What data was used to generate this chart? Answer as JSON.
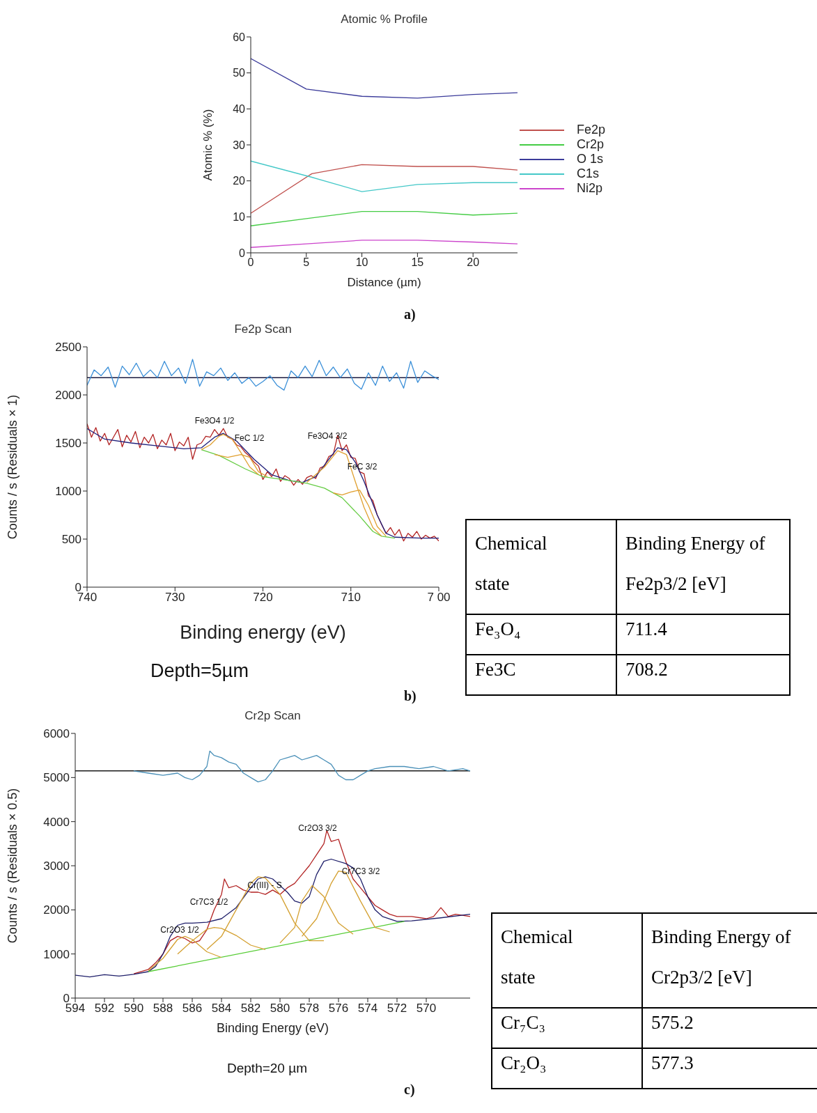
{
  "chart_data": [
    {
      "type": "line",
      "title": "Atomic % Profile",
      "xlabel": "Distance (µm)",
      "ylabel": "Atomic % (%)",
      "xlim": [
        0,
        24
      ],
      "xticks": [
        0,
        5,
        10,
        15,
        20
      ],
      "ylim": [
        0,
        60
      ],
      "yticks": [
        0,
        10,
        20,
        30,
        40,
        50,
        60
      ],
      "legend": "right",
      "annotations": [
        "a)"
      ],
      "x": [
        0,
        5,
        10,
        15,
        20,
        24
      ],
      "series": [
        {
          "name": "Fe2p",
          "color": "#c0504d",
          "x": [
            0,
            5.5,
            10,
            15,
            20,
            24
          ],
          "values": [
            11,
            22,
            24.5,
            24,
            24,
            23
          ]
        },
        {
          "name": "Cr2p",
          "color": "#44cc44",
          "values": [
            7.5,
            9.5,
            11.5,
            11.5,
            10.5,
            11
          ]
        },
        {
          "name": "O 1s",
          "color": "#3b3b9a",
          "values": [
            54,
            45.5,
            43.5,
            43,
            44,
            44.5
          ]
        },
        {
          "name": "C1s",
          "color": "#44c8c8",
          "x": [
            0,
            5.5,
            10,
            15,
            20,
            24
          ],
          "values": [
            25.5,
            21,
            17,
            19,
            19.5,
            19.5
          ]
        },
        {
          "name": "Ni2p",
          "color": "#cc44cc",
          "values": [
            1.5,
            2.5,
            3.5,
            3.5,
            3,
            2.5
          ]
        }
      ]
    },
    {
      "type": "line",
      "title": "Fe2p Scan",
      "xlabel": "Binding energy (eV)",
      "ylabel": "Counts / s  (Residuals × 1)",
      "xlim": [
        740,
        700
      ],
      "xticks": [
        740,
        730,
        720,
        710,
        {
          "value": 700,
          "label": "7 00"
        }
      ],
      "ylim": [
        0,
        2500
      ],
      "yticks": [
        0,
        500,
        1000,
        1500,
        2000,
        2500
      ],
      "ref_lines": [
        {
          "axis": "y",
          "value": 2180,
          "color": "#1a1a40"
        }
      ],
      "annotations": [
        "Depth=5µm",
        "b)",
        "Fe3O4 1/2",
        "FeC 1/2",
        "Fe3O4 3/2",
        "FeC 3/2"
      ],
      "series": [
        {
          "color": "#3a8fd8",
          "x": [
            740,
            739.2,
            738.4,
            737.6,
            736.8,
            736,
            735.2,
            734.4,
            733.6,
            732.8,
            732,
            731.2,
            730.4,
            729.6,
            728.8,
            728,
            727.2,
            726.4,
            725.6,
            724.8,
            724,
            723.2,
            722.4,
            721.6,
            720.8,
            720,
            719.2,
            718.4,
            717.6,
            716.8,
            716,
            715.2,
            714.4,
            713.6,
            712.8,
            712,
            711.2,
            710.4,
            709.6,
            708.8,
            708,
            707.2,
            706.4,
            705.6,
            704.8,
            704,
            703.2,
            702.4,
            701.6,
            700.8,
            700
          ],
          "values": [
            2100,
            2260,
            2200,
            2290,
            2080,
            2300,
            2210,
            2330,
            2190,
            2260,
            2180,
            2350,
            2200,
            2280,
            2120,
            2370,
            2090,
            2240,
            2200,
            2280,
            2150,
            2230,
            2120,
            2180,
            2090,
            2140,
            2200,
            2100,
            2050,
            2250,
            2180,
            2300,
            2190,
            2360,
            2200,
            2290,
            2180,
            2270,
            2120,
            2060,
            2230,
            2100,
            2300,
            2140,
            2230,
            2070,
            2350,
            2130,
            2250,
            2200,
            2160
          ]
        },
        {
          "color": "#b22222",
          "x": [
            740,
            739.5,
            739,
            738.5,
            738,
            737.5,
            737,
            736.5,
            736,
            735.5,
            735,
            734.5,
            734,
            733.5,
            733,
            732.5,
            732,
            731.5,
            731,
            730.5,
            730,
            729.5,
            729,
            728.5,
            728,
            727.5,
            727,
            726.5,
            726,
            725.5,
            725,
            724.5,
            724,
            723.5,
            723,
            722.5,
            722,
            721.5,
            721,
            720.5,
            720,
            719.5,
            719,
            718.5,
            718,
            717.5,
            717,
            716.5,
            716,
            715.5,
            715,
            714.5,
            714,
            713.5,
            713,
            712.5,
            712,
            711.5,
            711,
            710.5,
            710,
            709.5,
            709,
            708.5,
            708,
            707.5,
            707,
            706.5,
            706,
            705.5,
            705,
            704.5,
            704,
            703.5,
            703,
            702.5,
            702,
            701.5,
            701,
            700.5,
            700
          ],
          "values": [
            1700,
            1560,
            1660,
            1520,
            1600,
            1480,
            1560,
            1640,
            1460,
            1580,
            1510,
            1620,
            1450,
            1560,
            1500,
            1590,
            1440,
            1530,
            1480,
            1600,
            1420,
            1510,
            1470,
            1560,
            1330,
            1480,
            1500,
            1570,
            1560,
            1640,
            1580,
            1650,
            1560,
            1540,
            1480,
            1460,
            1400,
            1360,
            1300,
            1260,
            1120,
            1200,
            1150,
            1230,
            1100,
            1160,
            1130,
            1060,
            1120,
            1070,
            1140,
            1160,
            1130,
            1240,
            1260,
            1360,
            1380,
            1580,
            1420,
            1480,
            1350,
            1340,
            1200,
            1180,
            950,
            900,
            750,
            650,
            560,
            620,
            540,
            600,
            480,
            560,
            520,
            580,
            500,
            540,
            510,
            530,
            480
          ]
        },
        {
          "color": "#1f1f7a",
          "x": [
            740,
            738,
            735,
            732,
            729,
            727,
            725.5,
            724.5,
            723,
            721,
            719,
            717,
            715.5,
            714,
            712.5,
            711.5,
            710.5,
            709.5,
            708.5,
            707,
            706,
            705,
            702,
            700
          ],
          "values": [
            1650,
            1540,
            1500,
            1470,
            1440,
            1450,
            1560,
            1600,
            1520,
            1330,
            1170,
            1110,
            1090,
            1150,
            1330,
            1450,
            1430,
            1300,
            1100,
            750,
            560,
            520,
            510,
            510
          ]
        },
        {
          "color": "#66cc44",
          "x": [
            727,
            725,
            722,
            720,
            717,
            715,
            713,
            711,
            709,
            707.5,
            706.5,
            705
          ],
          "values": [
            1430,
            1370,
            1230,
            1150,
            1110,
            1080,
            1030,
            930,
            740,
            580,
            530,
            510
          ]
        },
        {
          "color": "#e0a030",
          "x": [
            727,
            726,
            725,
            724.5,
            723.5,
            722.5,
            721.5,
            720.5
          ],
          "values": [
            1430,
            1480,
            1570,
            1590,
            1540,
            1400,
            1250,
            1170
          ]
        },
        {
          "color": "#e0a030",
          "x": [
            725.5,
            724,
            722.5,
            721.5,
            720.5,
            719.5
          ],
          "values": [
            1380,
            1350,
            1380,
            1350,
            1200,
            1150
          ]
        },
        {
          "color": "#e0a030",
          "x": [
            715,
            713,
            711.5,
            710.5,
            709.5,
            708.5,
            707.5,
            706.5
          ],
          "values": [
            1090,
            1250,
            1420,
            1380,
            1100,
            830,
            620,
            530
          ]
        },
        {
          "color": "#e0a030",
          "x": [
            712,
            711,
            710,
            709,
            708,
            707,
            706
          ],
          "values": [
            980,
            960,
            990,
            1010,
            850,
            630,
            530
          ]
        }
      ]
    },
    {
      "type": "other",
      "annotations": [
        "Chemical state",
        "Binding Energy of Fe2p3/2 [eV]",
        "Fe₃O₄",
        "711.4",
        "Fe3C",
        "708.2"
      ]
    },
    {
      "type": "line",
      "title": "Cr2p Scan",
      "xlabel": "Binding Energy (eV)",
      "ylabel": "Counts / s  (Residuals × 0.5)",
      "xlim": [
        594,
        567
      ],
      "xticks": [
        594,
        592,
        590,
        588,
        586,
        584,
        582,
        580,
        578,
        576,
        574,
        572,
        570
      ],
      "ylim": [
        0,
        6000
      ],
      "yticks": [
        0,
        1000,
        2000,
        3000,
        4000,
        5000,
        6000
      ],
      "ref_lines": [
        {
          "axis": "y",
          "value": 5150,
          "color": "#1a1a1a"
        }
      ],
      "annotations": [
        "Depth=20 µm",
        "c)",
        "Cr2O3 1/2",
        "Cr7C3 1/2",
        "Cr(III) - S",
        "Cr2O3 3/2",
        "Cr7C3 3/2"
      ],
      "series": [
        {
          "color": "#4a90b8",
          "x": [
            590,
            589,
            588,
            587,
            586.5,
            586,
            585.5,
            585,
            584.8,
            584.5,
            584,
            583.5,
            583,
            582.5,
            582,
            581.5,
            581,
            580.5,
            580,
            579.5,
            579,
            578.5,
            578,
            577.5,
            577,
            576.5,
            576,
            575.5,
            575,
            574.5,
            574,
            573.5,
            572.5,
            571.5,
            570.5,
            569.5,
            568.5,
            567.5,
            567
          ],
          "values": [
            5150,
            5100,
            5050,
            5100,
            5000,
            4950,
            5050,
            5250,
            5600,
            5500,
            5450,
            5350,
            5300,
            5100,
            5000,
            4900,
            4950,
            5150,
            5400,
            5450,
            5500,
            5400,
            5450,
            5500,
            5400,
            5300,
            5050,
            4950,
            4950,
            5050,
            5150,
            5200,
            5250,
            5250,
            5200,
            5250,
            5150,
            5200,
            5150
          ]
        },
        {
          "color": "#b22222",
          "x": [
            590,
            589,
            588.5,
            588,
            587.5,
            587,
            586.5,
            586,
            585.5,
            585,
            584.5,
            584,
            583.8,
            583.5,
            583,
            582.5,
            582,
            581.5,
            581,
            580.5,
            580,
            579.5,
            579,
            578.5,
            578,
            577.5,
            577,
            576.8,
            576.5,
            576,
            575.5,
            575,
            574.5,
            574,
            573.5,
            573,
            572.5,
            572,
            571,
            570,
            569.5,
            569,
            568.5,
            568,
            567
          ],
          "values": [
            550,
            650,
            800,
            1000,
            1300,
            1400,
            1350,
            1250,
            1300,
            1550,
            2000,
            2350,
            2700,
            2500,
            2550,
            2450,
            2400,
            2400,
            2350,
            2450,
            2350,
            2500,
            2600,
            2800,
            3000,
            3250,
            3500,
            3800,
            3550,
            3600,
            3100,
            2700,
            2500,
            2300,
            2100,
            2000,
            1900,
            1850,
            1850,
            1800,
            1850,
            2050,
            1850,
            1900,
            1850
          ]
        },
        {
          "color": "#1f1f6a",
          "x": [
            594,
            593,
            592,
            591,
            590,
            589,
            588.5,
            588,
            587.5,
            587,
            586.5,
            586,
            585,
            584,
            583,
            582,
            581.5,
            581,
            580.5,
            579.5,
            579,
            578.5,
            578,
            577.5,
            577,
            576.5,
            575.5,
            575,
            574.5,
            574,
            573.5,
            573,
            572,
            571,
            569,
            567
          ],
          "values": [
            520,
            480,
            530,
            500,
            540,
            600,
            720,
            1000,
            1400,
            1650,
            1700,
            1700,
            1720,
            1800,
            2050,
            2500,
            2700,
            2750,
            2700,
            2400,
            2200,
            2150,
            2300,
            2800,
            3100,
            3150,
            3050,
            2950,
            2700,
            2300,
            2000,
            1850,
            1740,
            1750,
            1820,
            1900
          ]
        },
        {
          "color": "#55cc33",
          "x": [
            589,
            571.5
          ],
          "values": [
            600,
            1740
          ]
        },
        {
          "color": "#d4a030",
          "x": [
            589,
            588,
            587,
            586.5,
            586,
            585,
            584
          ],
          "values": [
            620,
            900,
            1330,
            1400,
            1330,
            1050,
            920
          ]
        },
        {
          "color": "#d4a030",
          "x": [
            587,
            586,
            585,
            584.5,
            584,
            583,
            582,
            581
          ],
          "values": [
            1000,
            1300,
            1560,
            1600,
            1580,
            1420,
            1200,
            1100
          ]
        },
        {
          "color": "#d4a030",
          "x": [
            585,
            584,
            583,
            582,
            581.5,
            581,
            580,
            579,
            578,
            577
          ],
          "values": [
            1100,
            1400,
            2000,
            2600,
            2750,
            2720,
            2350,
            1700,
            1300,
            1300
          ]
        },
        {
          "color": "#d4a030",
          "x": [
            580,
            579,
            578.5,
            577.8,
            577,
            576,
            575
          ],
          "values": [
            1250,
            1600,
            2200,
            2550,
            2300,
            1700,
            1450
          ]
        },
        {
          "color": "#d4a030",
          "x": [
            578.5,
            577.5,
            576.5,
            576,
            575.5,
            574.5,
            573.5,
            572.5
          ],
          "values": [
            1400,
            1800,
            2600,
            2880,
            2850,
            2200,
            1600,
            1500
          ]
        }
      ]
    },
    {
      "type": "other",
      "annotations": [
        "Chemical state",
        "Binding Energy of Cr2p3/2 [eV]",
        "Cr₇C₃",
        "575.2",
        "Cr₂O₃",
        "577.3"
      ]
    }
  ]
}
